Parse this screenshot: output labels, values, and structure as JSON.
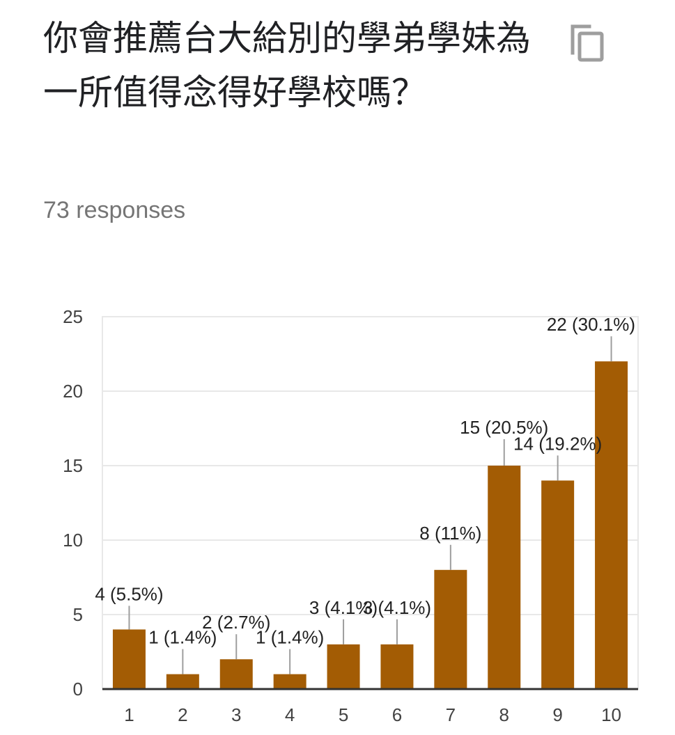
{
  "question": {
    "title": "你會推薦台大給別的學弟學妹為一所值得念得好學校嗎？",
    "responses_text": "73 responses"
  },
  "icons": {
    "copy": "copy-icon"
  },
  "colors": {
    "bar": "#a35c04",
    "grid": "#e8e8e8",
    "axis": "#333333",
    "leader": "#9e9e9e"
  },
  "chart_data": {
    "type": "bar",
    "categories": [
      "1",
      "2",
      "3",
      "4",
      "5",
      "6",
      "7",
      "8",
      "9",
      "10"
    ],
    "values": [
      4,
      1,
      2,
      1,
      3,
      3,
      8,
      15,
      14,
      22
    ],
    "data_labels": [
      "4 (5.5%)",
      "1 (1.4%)",
      "2 (2.7%)",
      "1 (1.4%)",
      "3 (4.1%)",
      "3 (4.1%)",
      "8 (11%)",
      "15 (20.5%)",
      "14 (19.2%)",
      "22 (30.1%)"
    ],
    "y_ticks": [
      0,
      5,
      10,
      15,
      20,
      25
    ],
    "ylim": [
      0,
      25
    ],
    "xlabel": "",
    "ylabel": "",
    "grid": true,
    "legend": "none"
  }
}
